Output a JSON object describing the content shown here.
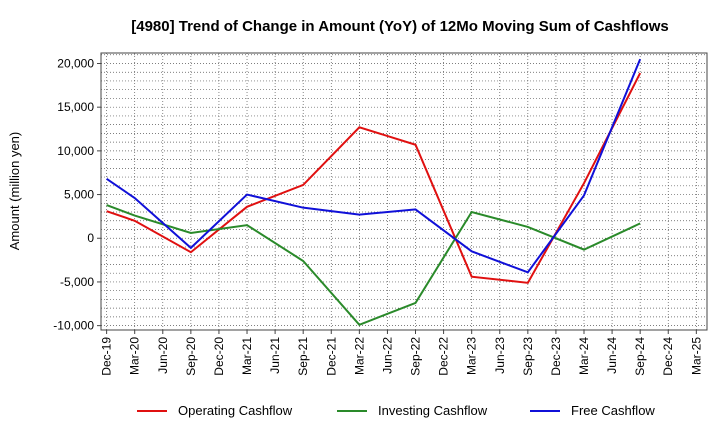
{
  "chart_data": {
    "type": "line",
    "title": "[4980]  Trend of Change in Amount (YoY) of 12Mo Moving Sum of Cashflows",
    "xlabel": "",
    "ylabel": "Amount (million yen)",
    "ylim": [
      -10500,
      21200
    ],
    "yticks": [
      -10000,
      -5000,
      0,
      5000,
      10000,
      15000,
      20000
    ],
    "ytick_labels": [
      "-10,000",
      "-5,000",
      "0",
      "5,000",
      "10,000",
      "15,000",
      "20,000"
    ],
    "categories": [
      "Dec-19",
      "Mar-20",
      "Jun-20",
      "Sep-20",
      "Dec-20",
      "Mar-21",
      "Jun-21",
      "Sep-21",
      "Dec-21",
      "Mar-22",
      "Jun-22",
      "Sep-22",
      "Dec-22",
      "Mar-23",
      "Jun-23",
      "Sep-23",
      "Dec-23",
      "Mar-24",
      "Jun-24",
      "Sep-24",
      "Dec-24",
      "Mar-25"
    ],
    "grid": true,
    "legend_position": "bottom",
    "series": [
      {
        "name": "Operating Cashflow",
        "color": "#e01010",
        "values": [
          3100,
          2000,
          null,
          -1600,
          null,
          3600,
          null,
          6100,
          null,
          12700,
          null,
          10700,
          null,
          -4400,
          null,
          -5100,
          null,
          6300,
          null,
          18900,
          null,
          null
        ]
      },
      {
        "name": "Investing Cashflow",
        "color": "#2a8a2a",
        "values": [
          3800,
          2600,
          null,
          600,
          null,
          1500,
          null,
          -2600,
          null,
          -9900,
          null,
          -7400,
          null,
          3000,
          null,
          1300,
          null,
          -1300,
          null,
          1700,
          null,
          null
        ]
      },
      {
        "name": "Free Cashflow",
        "color": "#1010d8",
        "values": [
          6800,
          4600,
          null,
          -1100,
          null,
          5000,
          null,
          3500,
          null,
          2700,
          null,
          3300,
          null,
          -1500,
          null,
          -3900,
          null,
          4900,
          null,
          20500,
          null,
          null
        ]
      }
    ]
  }
}
